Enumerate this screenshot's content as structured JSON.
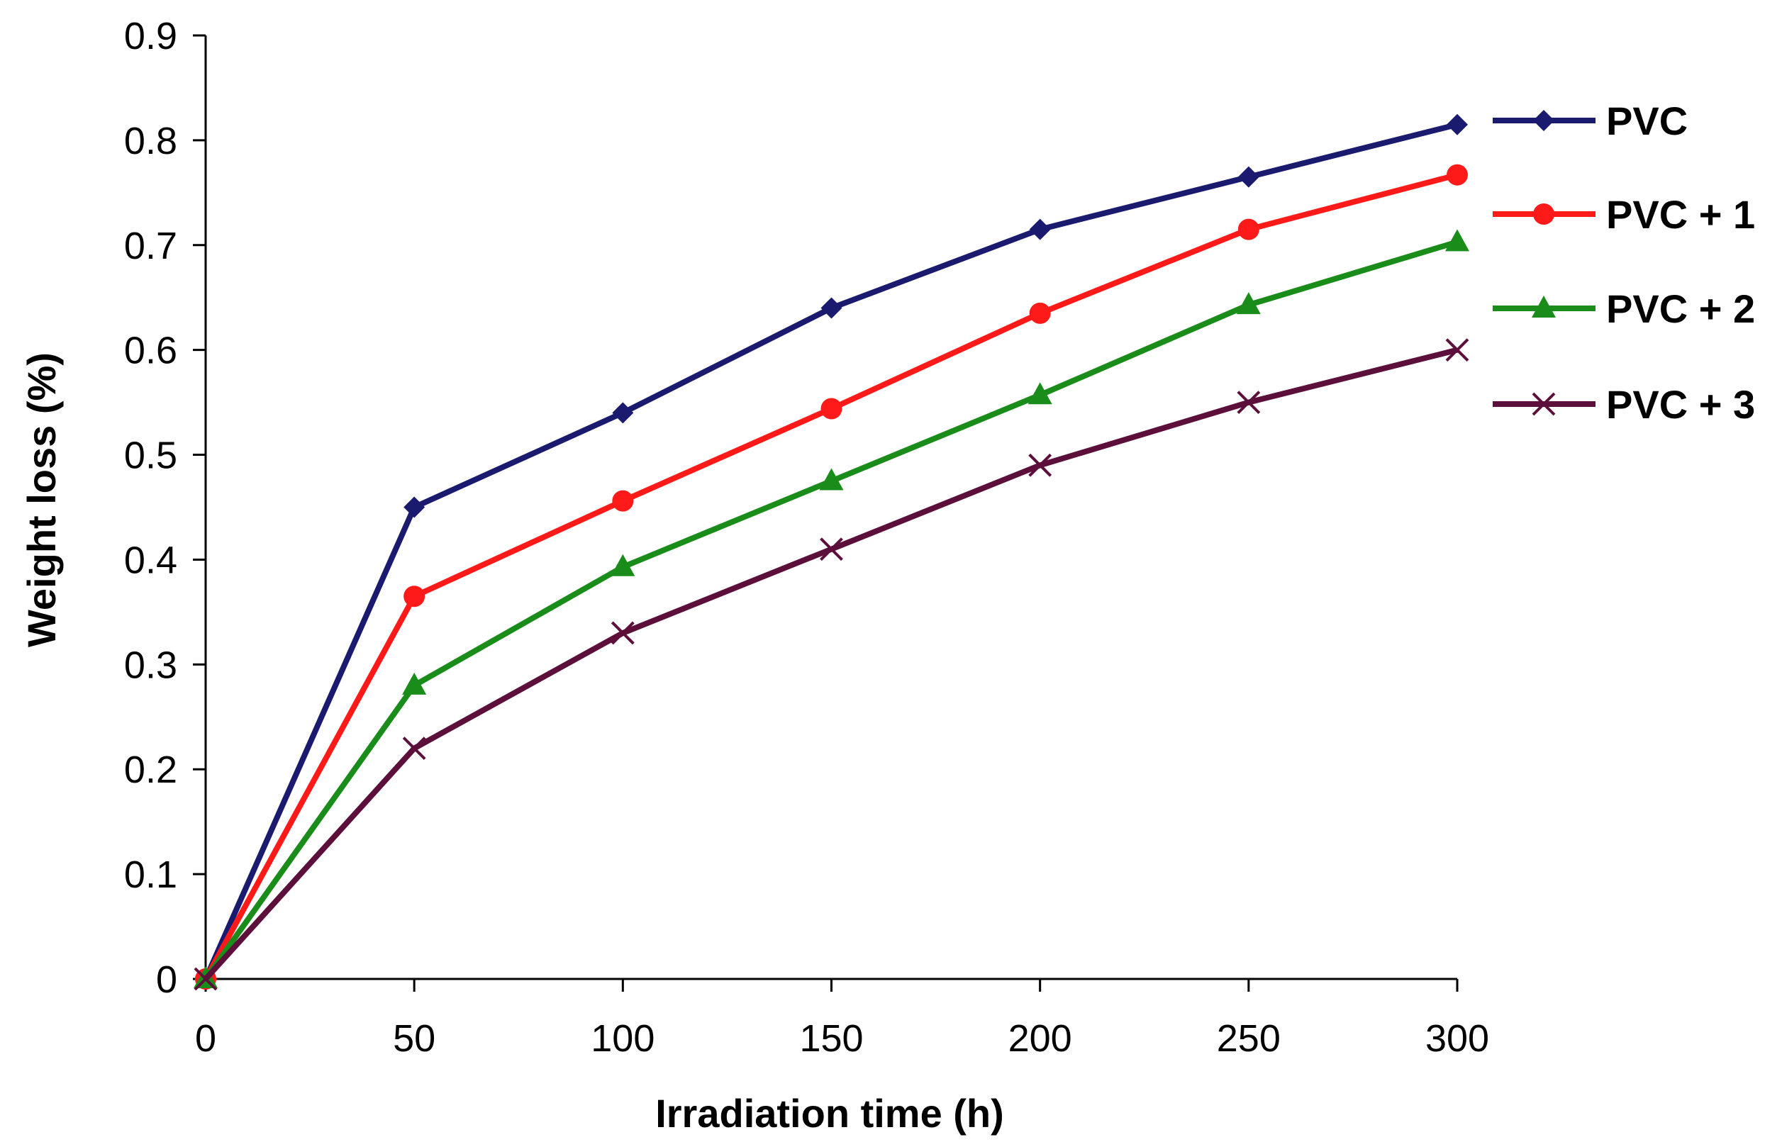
{
  "chart_data": {
    "type": "line",
    "title": "",
    "xlabel": "Irradiation  time (h)",
    "ylabel": "Weight loss  (%)",
    "x": [
      0,
      50,
      100,
      150,
      200,
      250,
      300
    ],
    "xlim": [
      0,
      300
    ],
    "ylim": [
      0,
      0.9
    ],
    "xticks": [
      0,
      50,
      100,
      150,
      200,
      250,
      300
    ],
    "xtick_labels": [
      "0",
      "50",
      "100",
      "150",
      "200",
      "250",
      "300"
    ],
    "yticks": [
      0,
      0.1,
      0.2,
      0.3,
      0.4,
      0.5,
      0.6,
      0.7,
      0.8,
      0.9
    ],
    "ytick_labels": [
      "0",
      "0.1",
      "0.2",
      "0.3",
      "0.4",
      "0.5",
      "0.6",
      "0.7",
      "0.8",
      "0.9"
    ],
    "grid": false,
    "legend_position": "right",
    "series": [
      {
        "name": "PVC",
        "color": "#1a1a6e",
        "marker": "diamond",
        "values": [
          0,
          0.45,
          0.54,
          0.64,
          0.715,
          0.765,
          0.815
        ]
      },
      {
        "name": "PVC + 1",
        "color": "#ff1a1a",
        "marker": "circle",
        "values": [
          0,
          0.365,
          0.456,
          0.544,
          0.635,
          0.715,
          0.767
        ]
      },
      {
        "name": "PVC + 2",
        "color": "#1a8c1a",
        "marker": "triangle",
        "values": [
          0,
          0.28,
          0.393,
          0.475,
          0.557,
          0.643,
          0.703
        ]
      },
      {
        "name": "PVC + 3",
        "color": "#5c0f3a",
        "marker": "x",
        "values": [
          0,
          0.22,
          0.33,
          0.41,
          0.49,
          0.55,
          0.6
        ]
      }
    ]
  }
}
